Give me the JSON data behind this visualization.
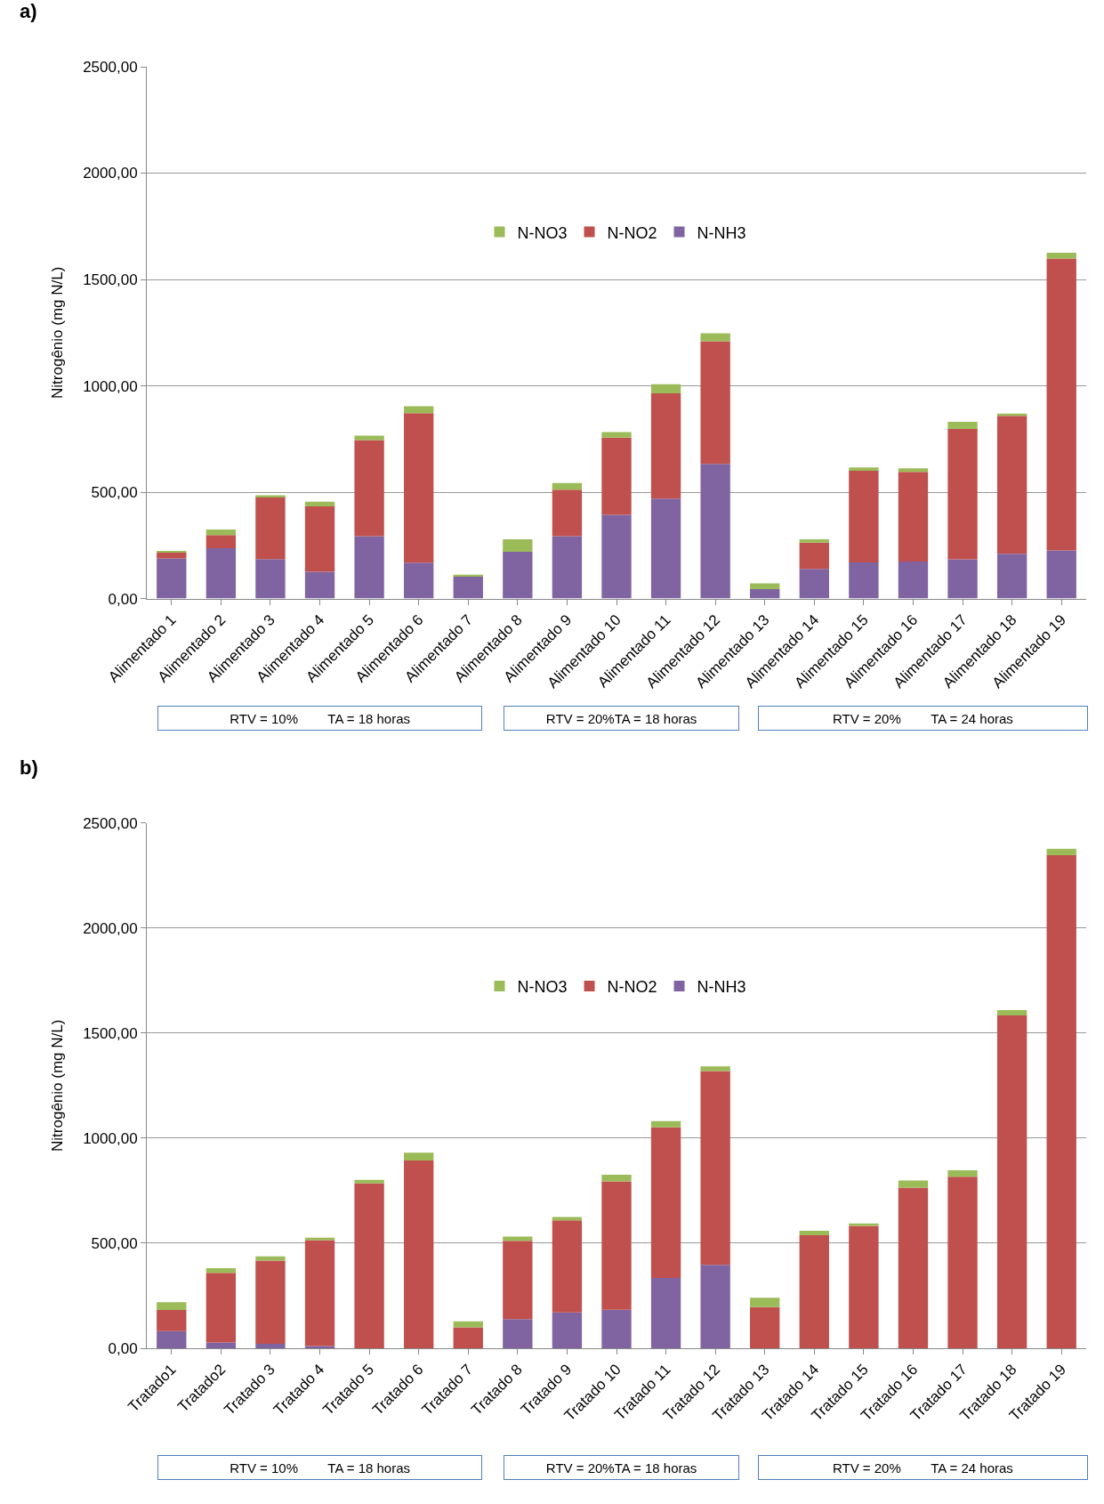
{
  "chart_data": [
    {
      "type": "bar",
      "title": "a)",
      "ylabel": "Nitrogênio (mg N/L)",
      "stacked": true,
      "grid": "y",
      "legend": "top",
      "categories": [
        "Alimentado 1",
        "Alimentado 2",
        "Alimentado 3",
        "Alimentado 4",
        "Alimentado 5",
        "Alimentado 6",
        "Alimentado 7",
        "Alimentado 8",
        "Alimentado 9",
        "Alimentado 10",
        "Alimentado 11",
        "Alimentado 12",
        "Alimentado 13",
        "Alimentado 14",
        "Alimentado 15",
        "Alimentado 16",
        "Alimentado 17",
        "Alimentado 18",
        "Alimentado 19"
      ],
      "series": [
        {
          "name": "N-NH3",
          "color": "#8064a2",
          "values": [
            189,
            237,
            186,
            126,
            293,
            169,
            106,
            220,
            293,
            394,
            470,
            633,
            44,
            139,
            170,
            174,
            185,
            211,
            226
          ]
        },
        {
          "name": "N-NO2",
          "color": "#c0504d",
          "values": [
            28,
            62,
            293,
            307,
            452,
            703,
            0,
            0,
            219,
            363,
            495,
            576,
            0,
            124,
            431,
            421,
            612,
            648,
            1373
          ]
        },
        {
          "name": "N-NO3",
          "color": "#9bbb59",
          "values": [
            5,
            26,
            7,
            22,
            21,
            32,
            6,
            59,
            31,
            26,
            43,
            38,
            28,
            16,
            15,
            17,
            34,
            11,
            27
          ]
        }
      ],
      "ylim": [
        0,
        2500
      ],
      "yticks": [
        {
          "value": 0,
          "label": "0,00"
        },
        {
          "value": 500,
          "label": "500,00"
        },
        {
          "value": 1000,
          "label": "1000,00"
        },
        {
          "value": 1500,
          "label": "1500,00"
        },
        {
          "value": 2000,
          "label": "2000,00"
        },
        {
          "value": 2500,
          "label": "2500,00"
        }
      ],
      "annotations": [
        "RTV = 10%        TA = 18 horas",
        "RTV = 20%TA = 18 horas",
        "RTV = 20%        TA = 24 horas"
      ]
    },
    {
      "type": "bar",
      "title": "b)",
      "ylabel": "Nitrogênio (mg N/L)",
      "stacked": true,
      "grid": "y",
      "legend": "top",
      "categories": [
        "Tratado1",
        "Tratado2",
        "Tratado 3",
        "Tratado 4",
        "Tratado 5",
        "Tratado 6",
        "Tratado 7",
        "Tratado 8",
        "Tratado 9",
        "Tratado 10",
        "Tratado 11",
        "Tratado 12",
        "Tratado 13",
        "Tratado 14",
        "Tratado 15",
        "Tratado 16",
        "Tratado 17",
        "Tratado 18",
        "Tratado 19"
      ],
      "series": [
        {
          "name": "N-NH3",
          "color": "#8064a2",
          "values": [
            81,
            28,
            21,
            11,
            0,
            0,
            0,
            139,
            170,
            183,
            335,
            397,
            0,
            0,
            0,
            0,
            0,
            0,
            0
          ]
        },
        {
          "name": "N-NO2",
          "color": "#c0504d",
          "values": [
            101,
            331,
            396,
            504,
            784,
            893,
            99,
            372,
            439,
            611,
            716,
            922,
            196,
            538,
            582,
            764,
            816,
            1584,
            2346
          ]
        },
        {
          "name": "N-NO3",
          "color": "#9bbb59",
          "values": [
            37,
            22,
            20,
            11,
            17,
            37,
            29,
            20,
            16,
            32,
            30,
            22,
            44,
            21,
            12,
            34,
            31,
            25,
            31
          ]
        }
      ],
      "ylim": [
        0,
        2500
      ],
      "yticks": [
        {
          "value": 0,
          "label": "0,00"
        },
        {
          "value": 500,
          "label": "500,00"
        },
        {
          "value": 1000,
          "label": "1000,00"
        },
        {
          "value": 1500,
          "label": "1500,00"
        },
        {
          "value": 2000,
          "label": "2000,00"
        },
        {
          "value": 2500,
          "label": "2500,00"
        }
      ],
      "annotations": [
        "RTV = 10%        TA = 18 horas",
        "RTV = 20%TA = 18 horas",
        "RTV = 20%        TA = 24 horas"
      ]
    }
  ]
}
